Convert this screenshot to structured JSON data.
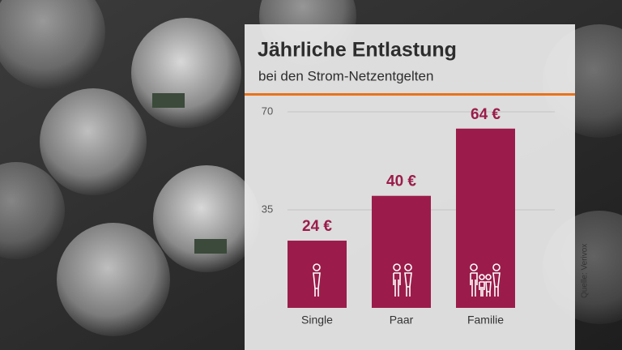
{
  "chart_data": {
    "type": "bar",
    "title": "Jährliche Entlastung",
    "subtitle": "bei den Strom-Netzentgelten",
    "categories": [
      "Single",
      "Paar",
      "Familie"
    ],
    "values": [
      24,
      40,
      64
    ],
    "value_labels": [
      "24 €",
      "40 €",
      "64 €"
    ],
    "color": "#9b1c4a",
    "ylim": [
      0,
      70
    ],
    "yticks": [
      35,
      70
    ],
    "grid": true,
    "source": "Quelle: Verivox"
  }
}
